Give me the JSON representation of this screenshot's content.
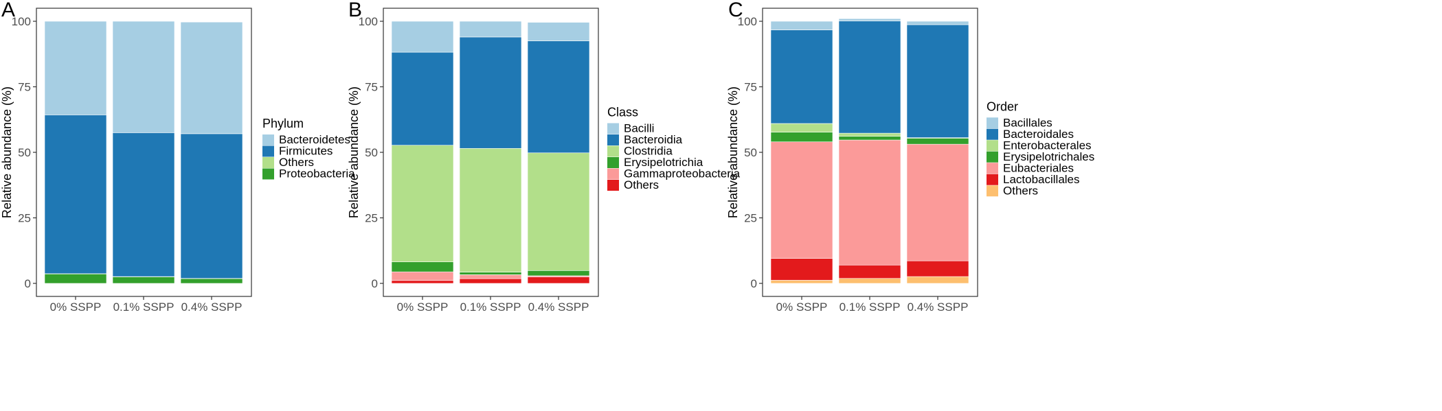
{
  "chart_data": [
    {
      "panel": "A",
      "type": "bar",
      "stacked": true,
      "categories": [
        "0% SSPP",
        "0.1% SSPP",
        "0.4% SSPP"
      ],
      "ylabel": "Relative abundance (%)",
      "yticks": [
        "0",
        "25",
        "50",
        "75",
        "100"
      ],
      "ylim": [
        0,
        100
      ],
      "legend_title": "Phylum",
      "series": [
        {
          "name": "Bacteroidetes",
          "color": "#a6cee3",
          "values": [
            35.7,
            42.5,
            42.6
          ]
        },
        {
          "name": "Firmicutes",
          "color": "#1f78b4",
          "values": [
            60.6,
            54.9,
            55.2
          ]
        },
        {
          "name": "Others",
          "color": "#b2df8a",
          "values": [
            0.1,
            0.1,
            0.1
          ]
        },
        {
          "name": "Proteobacteria",
          "color": "#33a02c",
          "values": [
            3.6,
            2.5,
            1.8
          ]
        }
      ]
    },
    {
      "panel": "B",
      "type": "bar",
      "stacked": true,
      "categories": [
        "0% SSPP",
        "0.1% SSPP",
        "0.4% SSPP"
      ],
      "ylabel": "Relative abundance (%)",
      "yticks": [
        "0",
        "25",
        "50",
        "75",
        "100"
      ],
      "ylim": [
        0,
        100
      ],
      "legend_title": "Class",
      "series": [
        {
          "name": "Bacilli",
          "color": "#a6cee3",
          "values": [
            11.8,
            6.0,
            7.1
          ]
        },
        {
          "name": "Bacteroidia",
          "color": "#1f78b4",
          "values": [
            35.5,
            42.5,
            42.7
          ]
        },
        {
          "name": "Clostridia",
          "color": "#b2df8a",
          "values": [
            44.5,
            47.2,
            44.9
          ]
        },
        {
          "name": "Erysipelotrichia",
          "color": "#33a02c",
          "values": [
            3.8,
            1.0,
            2.0
          ]
        },
        {
          "name": "Gammaproteobacteria",
          "color": "#fb9a99",
          "values": [
            3.3,
            1.5,
            0.4
          ]
        },
        {
          "name": "Others",
          "color": "#e31a1c",
          "values": [
            1.1,
            1.8,
            2.5
          ]
        }
      ]
    },
    {
      "panel": "C",
      "type": "bar",
      "stacked": true,
      "categories": [
        "0% SSPP",
        "0.1% SSPP",
        "0.4% SSPP"
      ],
      "ylabel": "Relative abundance (%)",
      "yticks": [
        "0",
        "25",
        "50",
        "75",
        "100"
      ],
      "ylim": [
        0,
        100
      ],
      "legend_title": "Order",
      "series": [
        {
          "name": "Bacillales",
          "color": "#a6cee3",
          "values": [
            3.3,
            0.9,
            1.3
          ]
        },
        {
          "name": "Bacteroidales",
          "color": "#1f78b4",
          "values": [
            35.7,
            42.8,
            43.1
          ]
        },
        {
          "name": "Enterobacterales",
          "color": "#b2df8a",
          "values": [
            3.3,
            1.2,
            0.2
          ]
        },
        {
          "name": "Erysipelotrichales",
          "color": "#33a02c",
          "values": [
            3.7,
            1.4,
            2.3
          ]
        },
        {
          "name": "Eubacteriales",
          "color": "#fb9a99",
          "values": [
            44.5,
            47.7,
            44.5
          ]
        },
        {
          "name": "Lactobacillales",
          "color": "#e31a1c",
          "values": [
            8.3,
            5.1,
            6.0
          ]
        },
        {
          "name": "Others",
          "color": "#fdbf6f",
          "values": [
            1.2,
            1.9,
            2.6
          ]
        }
      ]
    }
  ]
}
